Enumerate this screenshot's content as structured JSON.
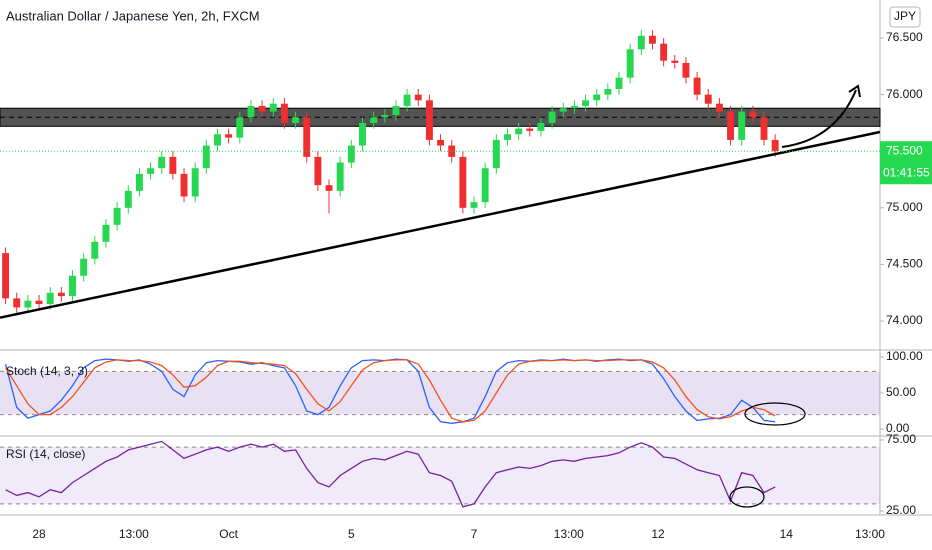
{
  "chart_data": [
    {
      "type": "candlestick",
      "title": "Australian Dollar / Japanese Yen, 2h, FXCM",
      "currency": "JPY",
      "open": [
        74.6,
        74.2,
        74.12,
        74.18,
        74.15,
        74.25,
        74.22,
        74.4,
        74.55,
        74.7,
        74.85,
        75.0,
        75.15,
        75.3,
        75.35,
        75.45,
        75.3,
        75.1,
        75.35,
        75.55,
        75.65,
        75.62,
        75.8,
        75.9,
        75.85,
        75.92,
        75.75,
        75.8,
        75.45,
        75.2,
        75.15,
        75.4,
        75.55,
        75.75,
        75.8,
        75.82,
        75.9,
        76.0,
        75.95,
        75.6,
        75.55,
        75.45,
        75.0,
        75.05,
        75.35,
        75.6,
        75.65,
        75.7,
        75.68,
        75.75,
        75.85,
        75.88,
        75.9,
        75.95,
        76.0,
        76.05,
        76.15,
        76.4,
        76.52,
        76.45,
        76.3,
        76.28,
        76.15,
        76.0,
        75.92,
        75.85,
        75.6,
        75.85,
        75.8,
        75.6
      ],
      "high": [
        74.65,
        74.25,
        74.23,
        74.23,
        74.3,
        74.3,
        74.45,
        74.6,
        74.75,
        74.9,
        75.05,
        75.2,
        75.35,
        75.4,
        75.5,
        75.5,
        75.35,
        75.4,
        75.6,
        75.7,
        75.7,
        75.85,
        75.95,
        75.95,
        75.97,
        75.97,
        75.85,
        75.85,
        75.5,
        75.25,
        75.45,
        75.6,
        75.8,
        75.85,
        75.87,
        75.95,
        76.05,
        76.05,
        76.0,
        75.65,
        75.6,
        75.5,
        75.1,
        75.4,
        75.65,
        75.7,
        75.75,
        75.75,
        75.8,
        75.9,
        75.93,
        75.95,
        76.0,
        76.05,
        76.1,
        76.2,
        76.45,
        76.57,
        76.57,
        76.5,
        76.35,
        76.33,
        76.2,
        76.05,
        75.97,
        75.9,
        75.9,
        75.9,
        75.85,
        75.65
      ],
      "low": [
        74.15,
        74.07,
        74.07,
        74.1,
        74.1,
        74.17,
        74.17,
        74.35,
        74.5,
        74.65,
        74.8,
        74.95,
        75.1,
        75.25,
        75.3,
        75.25,
        75.05,
        75.05,
        75.3,
        75.5,
        75.57,
        75.57,
        75.75,
        75.8,
        75.8,
        75.7,
        75.7,
        75.4,
        75.15,
        74.95,
        75.1,
        75.35,
        75.5,
        75.7,
        75.75,
        75.77,
        75.85,
        75.9,
        75.55,
        75.5,
        75.4,
        74.95,
        74.95,
        75.0,
        75.3,
        75.55,
        75.6,
        75.63,
        75.63,
        75.7,
        75.8,
        75.83,
        75.85,
        75.9,
        75.95,
        76.0,
        76.1,
        76.35,
        76.4,
        76.25,
        76.23,
        76.1,
        75.95,
        75.87,
        75.8,
        75.55,
        75.55,
        75.75,
        75.55,
        75.45
      ],
      "close": [
        74.2,
        74.12,
        74.18,
        74.15,
        74.25,
        74.22,
        74.4,
        74.55,
        74.7,
        74.85,
        75.0,
        75.15,
        75.3,
        75.35,
        75.45,
        75.3,
        75.1,
        75.35,
        75.55,
        75.65,
        75.62,
        75.8,
        75.9,
        75.85,
        75.92,
        75.75,
        75.8,
        75.45,
        75.2,
        75.15,
        75.4,
        75.55,
        75.75,
        75.8,
        75.82,
        75.9,
        76.0,
        75.95,
        75.6,
        75.55,
        75.45,
        75.0,
        75.05,
        75.35,
        75.6,
        75.65,
        75.7,
        75.68,
        75.75,
        75.85,
        75.88,
        75.9,
        75.95,
        76.0,
        76.05,
        76.15,
        76.4,
        76.52,
        76.45,
        76.3,
        76.28,
        76.15,
        76.0,
        75.92,
        75.85,
        75.6,
        75.85,
        75.8,
        75.6,
        75.5
      ],
      "up_color": "#26d84f",
      "down_color": "#ef2f2f",
      "xlim": [
        -0.5,
        78.4
      ],
      "xticks": [
        {
          "value": 3,
          "label": "28"
        },
        {
          "value": 11.5,
          "label": "13:00"
        },
        {
          "value": 20,
          "label": "Oct"
        },
        {
          "value": 31,
          "label": "5"
        },
        {
          "value": 42,
          "label": "7"
        },
        {
          "value": 50.5,
          "label": "13:00"
        },
        {
          "value": 58.5,
          "label": "12"
        },
        {
          "value": 70,
          "label": "14"
        },
        {
          "value": 77.5,
          "label": "13:00"
        }
      ],
      "ylim": [
        73.744,
        76.836
      ],
      "yticks": [
        {
          "value": 74,
          "label": "74.000"
        },
        {
          "value": 74.5,
          "label": "74.500"
        },
        {
          "value": 75,
          "label": "75.000"
        },
        {
          "value": 76,
          "label": "76.000"
        },
        {
          "value": 76.5,
          "label": "76.500"
        }
      ],
      "zone": [
        75.72,
        75.88
      ],
      "trendline": {
        "x": [
          -0.5,
          78.4
        ],
        "y": [
          74.03,
          75.67
        ]
      },
      "price_label": "75.500",
      "countdown": "01:41:55"
    },
    {
      "type": "line",
      "title": "Stoch (14, 3, 3)",
      "ylim": [
        -9.7,
        109.7
      ],
      "yticks": [
        {
          "value": 100,
          "label": "100.00"
        },
        {
          "value": 50,
          "label": "50.00"
        },
        {
          "value": 0,
          "label": "0.00"
        }
      ],
      "band": [
        20,
        80
      ],
      "band_color": "rgba(126,87,194,0.18)",
      "series": [
        {
          "color": "#2962ff",
          "values": [
            90,
            30,
            15,
            20,
            25,
            40,
            60,
            85,
            95,
            97,
            96,
            94,
            96,
            90,
            80,
            55,
            45,
            75,
            92,
            95,
            94,
            93,
            90,
            92,
            88,
            85,
            60,
            25,
            20,
            30,
            60,
            85,
            95,
            96,
            95,
            97,
            96,
            80,
            30,
            10,
            8,
            10,
            15,
            45,
            80,
            92,
            95,
            94,
            96,
            95,
            97,
            95,
            96,
            94,
            96,
            97,
            95,
            96,
            90,
            70,
            45,
            25,
            12,
            14,
            15,
            20,
            40,
            30,
            12,
            10
          ]
        },
        {
          "color": "#f4511e",
          "values": [
            85,
            60,
            35,
            20,
            20,
            30,
            45,
            65,
            85,
            93,
            96,
            95,
            95,
            93,
            88,
            75,
            58,
            60,
            72,
            88,
            94,
            94,
            92,
            91,
            90,
            88,
            77,
            55,
            35,
            25,
            38,
            60,
            82,
            92,
            95,
            96,
            96,
            90,
            68,
            40,
            15,
            10,
            12,
            25,
            50,
            75,
            90,
            94,
            95,
            95,
            96,
            95,
            96,
            95,
            95,
            96,
            96,
            96,
            93,
            85,
            68,
            45,
            27,
            17,
            14,
            17,
            25,
            30,
            27,
            18
          ]
        }
      ]
    },
    {
      "type": "line",
      "title": "RSI (14, close)",
      "ylim": [
        22.2,
        77.8
      ],
      "yticks": [
        {
          "value": 75,
          "label": "75.00"
        },
        {
          "value": 25,
          "label": "25.00"
        }
      ],
      "band": [
        30,
        70
      ],
      "band_color": "rgba(126,87,194,0.12)",
      "series": [
        {
          "color": "#7b1fa2",
          "values": [
            40,
            36,
            38,
            35,
            40,
            38,
            45,
            50,
            55,
            60,
            63,
            68,
            70,
            72,
            74,
            68,
            62,
            65,
            68,
            70,
            67,
            70,
            72,
            70,
            72,
            67,
            68,
            55,
            45,
            42,
            50,
            55,
            60,
            62,
            61,
            64,
            67,
            65,
            52,
            50,
            46,
            28,
            30,
            42,
            52,
            54,
            56,
            55,
            57,
            60,
            61,
            60,
            62,
            63,
            64,
            66,
            70,
            73,
            70,
            63,
            62,
            58,
            54,
            52,
            50,
            32,
            52,
            50,
            38,
            42
          ]
        }
      ]
    }
  ]
}
